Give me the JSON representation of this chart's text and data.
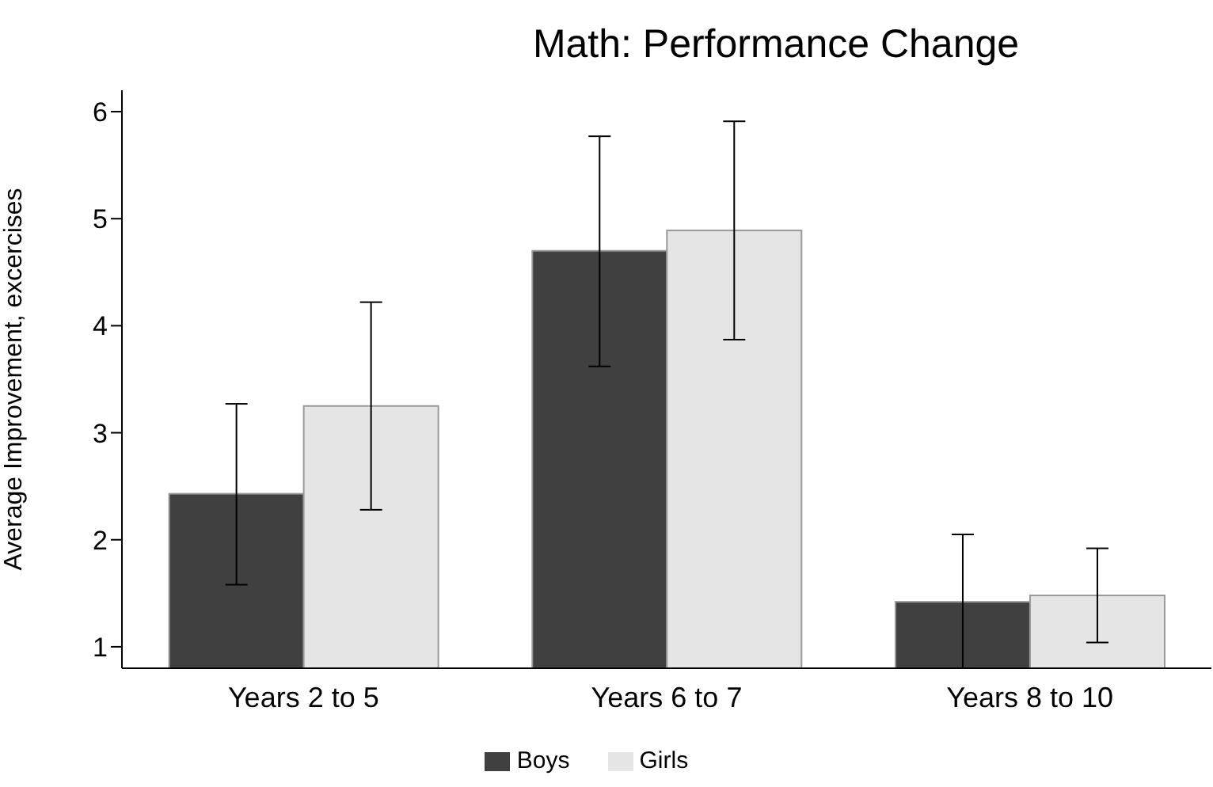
{
  "chart_data": {
    "type": "bar",
    "title": "Math: Performance Change",
    "ylabel": "Average Improvement, excercises",
    "categories": [
      "Years 2 to 5",
      "Years 6 to 7",
      "Years 8 to 10"
    ],
    "series": [
      {
        "name": "Boys",
        "color": "#404040",
        "values": [
          2.43,
          4.7,
          1.42
        ],
        "errors": [
          [
            1.58,
            3.27
          ],
          [
            3.62,
            5.77
          ],
          [
            0.8,
            2.05
          ]
        ]
      },
      {
        "name": "Girls",
        "color": "#e5e5e5",
        "values": [
          3.25,
          4.89,
          1.48
        ],
        "errors": [
          [
            2.28,
            4.22
          ],
          [
            3.87,
            5.91
          ],
          [
            1.04,
            1.92
          ]
        ]
      }
    ],
    "ylim": [
      0.8,
      6.2
    ],
    "yticks": [
      1,
      2,
      3,
      4,
      5,
      6
    ],
    "grid": false,
    "legend": "bottom"
  }
}
